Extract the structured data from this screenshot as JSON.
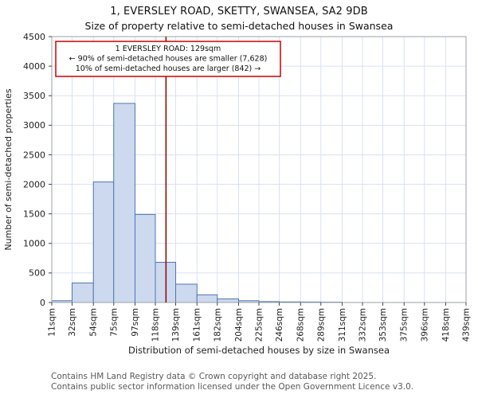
{
  "chart_data": {
    "type": "bar",
    "title": "1, EVERSLEY ROAD, SKETTY, SWANSEA, SA2 9DB",
    "subtitle": "Size of property relative to semi-detached houses in Swansea",
    "xlabel": "Distribution of semi-detached houses by size in Swansea",
    "ylabel": "Number of semi-detached properties",
    "categories": [
      "11sqm",
      "32sqm",
      "54sqm",
      "75sqm",
      "97sqm",
      "118sqm",
      "139sqm",
      "161sqm",
      "182sqm",
      "204sqm",
      "225sqm",
      "246sqm",
      "268sqm",
      "289sqm",
      "311sqm",
      "332sqm",
      "353sqm",
      "375sqm",
      "396sqm",
      "418sqm",
      "439sqm"
    ],
    "bin_edges": [
      11,
      32,
      54,
      75,
      97,
      118,
      139,
      161,
      182,
      204,
      225,
      246,
      268,
      289,
      311,
      332,
      353,
      375,
      396,
      418,
      439
    ],
    "values": [
      30,
      330,
      2040,
      3370,
      1490,
      680,
      310,
      130,
      60,
      30,
      15,
      10,
      8,
      5,
      0,
      0,
      0,
      0,
      0,
      0
    ],
    "ylim": [
      0,
      4500
    ],
    "xlim": [
      11,
      439
    ],
    "ytick_step": 500,
    "grid": true,
    "legend": "none",
    "marker": {
      "value": 129,
      "color": "#8b0000"
    },
    "annotation": {
      "lines": [
        "1 EVERSLEY ROAD: 129sqm",
        "← 90% of semi-detached houses are smaller (7,628)",
        "10% of semi-detached houses are larger (842) →"
      ],
      "border_color": "#cc0000",
      "text_color": "#111111"
    },
    "colors": {
      "bar_fill": "#cdd9ee",
      "bar_edge": "#4f77b2",
      "grid": "#d9e1f2",
      "plot_bg": "#ffffff",
      "spine": "#9aa0a6",
      "tick": "#444444",
      "tick_label": "#222222",
      "axis_label": "#222222"
    }
  },
  "footer": {
    "line1": "Contains HM Land Registry data © Crown copyright and database right 2025.",
    "line2": "Contains public sector information licensed under the Open Government Licence v3.0."
  }
}
